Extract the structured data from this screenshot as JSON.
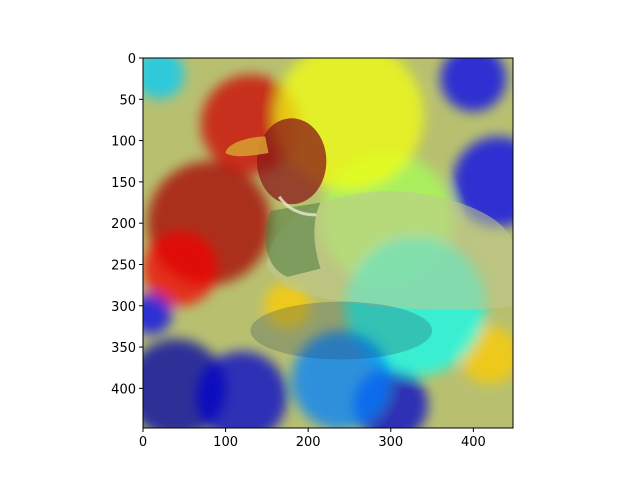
{
  "chart_data": {
    "type": "heatmap",
    "title": "",
    "xlabel": "",
    "ylabel": "",
    "xlim": [
      0,
      448
    ],
    "ylim": [
      448,
      0
    ],
    "y_axis_inverted": true,
    "grid": false,
    "x_ticks": [
      0,
      100,
      200,
      300,
      400
    ],
    "y_ticks": [
      0,
      50,
      100,
      150,
      200,
      250,
      300,
      350,
      400
    ],
    "x_tick_labels": [
      "0",
      "100",
      "200",
      "300",
      "400"
    ],
    "y_tick_labels": [
      "0",
      "50",
      "100",
      "150",
      "200",
      "250",
      "300",
      "350",
      "400"
    ],
    "colormap": "jet",
    "colormap_stops": [
      "#00007f",
      "#0000ff",
      "#00ffff",
      "#7fff7f",
      "#ffff00",
      "#ff0000",
      "#7f0000"
    ],
    "background_color": "#b8c070",
    "image_subject": "mallard-duck-on-water",
    "heat_blobs": [
      {
        "cx": 80,
        "cy": 200,
        "r": 75,
        "v": 0.95
      },
      {
        "cx": 130,
        "cy": 80,
        "r": 60,
        "v": 0.9
      },
      {
        "cx": 45,
        "cy": 255,
        "r": 45,
        "v": 0.85
      },
      {
        "cx": 175,
        "cy": 300,
        "r": 28,
        "v": 0.7
      },
      {
        "cx": 295,
        "cy": 195,
        "r": 80,
        "v": 0.55
      },
      {
        "cx": 250,
        "cy": 70,
        "r": 90,
        "v": 0.65
      },
      {
        "cx": 420,
        "cy": 360,
        "r": 35,
        "v": 0.7
      },
      {
        "cx": 40,
        "cy": 400,
        "r": 60,
        "v": 0.05
      },
      {
        "cx": 120,
        "cy": 410,
        "r": 55,
        "v": 0.1
      },
      {
        "cx": 300,
        "cy": 420,
        "r": 45,
        "v": 0.1
      },
      {
        "cx": 430,
        "cy": 150,
        "r": 55,
        "v": 0.15
      },
      {
        "cx": 400,
        "cy": 25,
        "r": 40,
        "v": 0.15
      },
      {
        "cx": 10,
        "cy": 310,
        "r": 25,
        "v": 0.15
      },
      {
        "cx": 330,
        "cy": 300,
        "r": 85,
        "v": 0.35
      },
      {
        "cx": 240,
        "cy": 390,
        "r": 60,
        "v": 0.25
      },
      {
        "cx": 20,
        "cy": 20,
        "r": 30,
        "v": 0.3
      }
    ],
    "duck": {
      "head": {
        "cx": 180,
        "cy": 125,
        "rx": 42,
        "ry": 52,
        "color": "#8a1818"
      },
      "bill": {
        "color": "#d8a030"
      },
      "body_color": "#c0c890",
      "neck_ring_color": "#e8e8d0"
    }
  }
}
